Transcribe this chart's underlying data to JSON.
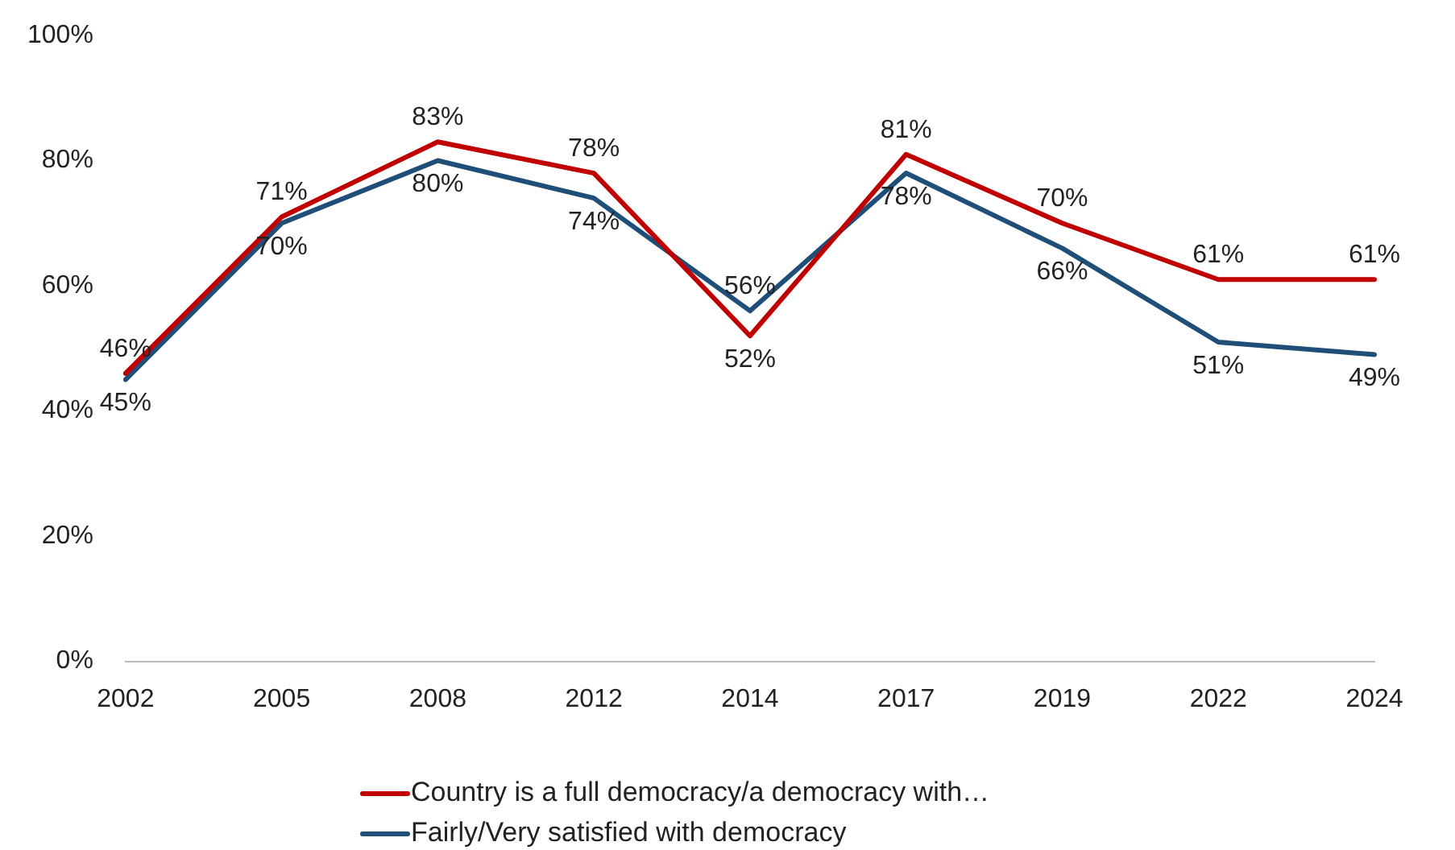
{
  "chart_data": {
    "type": "line",
    "categories": [
      "2002",
      "2005",
      "2008",
      "2012",
      "2014",
      "2017",
      "2019",
      "2022",
      "2024"
    ],
    "series": [
      {
        "name": "Country is a full democracy/a democracy with…",
        "color": "#c00000",
        "values": [
          46,
          71,
          83,
          78,
          52,
          81,
          70,
          61,
          61
        ],
        "value_labels": [
          "46%",
          "71%",
          "83%",
          "78%",
          "52%",
          "81%",
          "70%",
          "61%",
          "61%"
        ]
      },
      {
        "name": "Fairly/Very satisfied with democracy",
        "color": "#1f4e79",
        "values": [
          45,
          70,
          80,
          74,
          56,
          78,
          66,
          51,
          49
        ],
        "value_labels": [
          "45%",
          "70%",
          "80%",
          "74%",
          "56%",
          "78%",
          "66%",
          "51%",
          "49%"
        ]
      }
    ],
    "ylim": [
      0,
      100
    ],
    "yticks": [
      {
        "value": 0,
        "label": "0%"
      },
      {
        "value": 20,
        "label": "20%"
      },
      {
        "value": 40,
        "label": "40%"
      },
      {
        "value": 60,
        "label": "60%"
      },
      {
        "value": 80,
        "label": "80%"
      },
      {
        "value": 100,
        "label": "100%"
      }
    ],
    "grid": false,
    "legend": "bottom",
    "marker": "none",
    "line_style": "solid"
  }
}
